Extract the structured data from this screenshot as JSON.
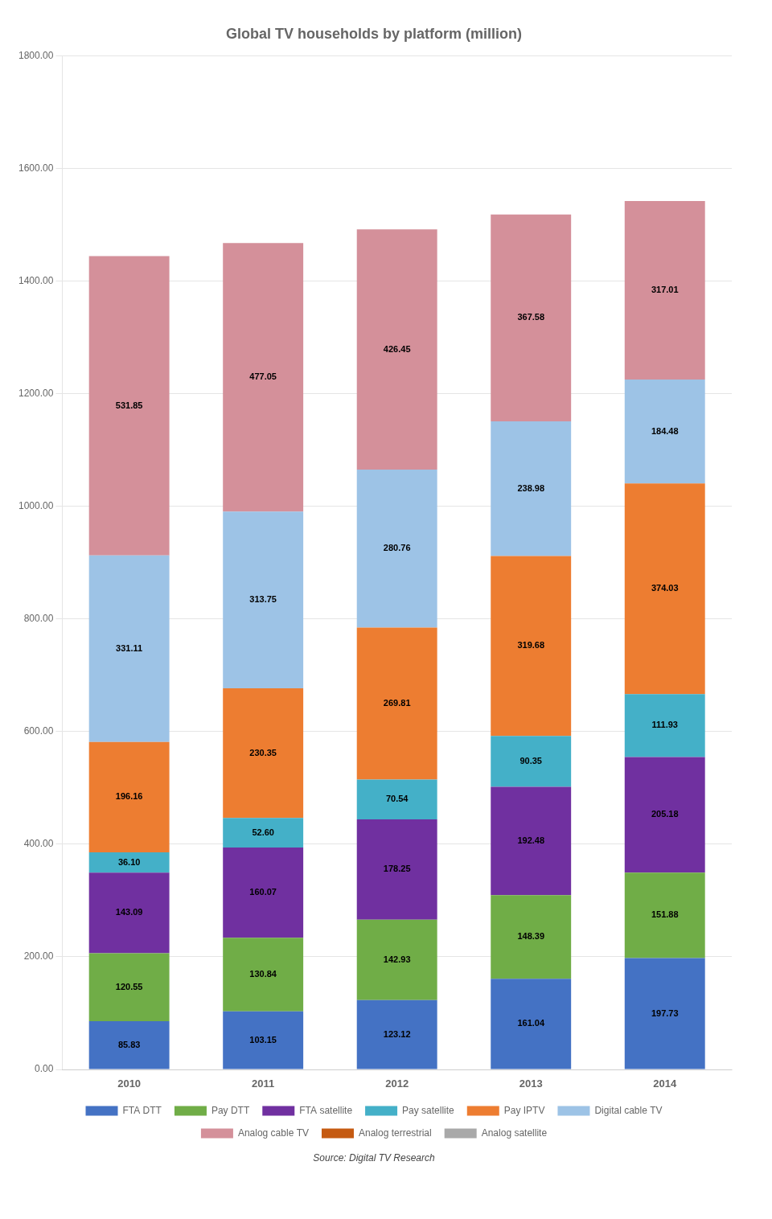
{
  "chart_data": {
    "type": "bar",
    "title": "Global TV households by platform (million)",
    "source": "Source: Digital TV Research",
    "categories": [
      "2010",
      "2011",
      "2012",
      "2013",
      "2014"
    ],
    "stacked": true,
    "data_labels": true,
    "grid": true,
    "legend": "bottom",
    "ylim": [
      0,
      1800
    ],
    "yticks": [
      {
        "value": 0,
        "label": "0.00"
      },
      {
        "value": 200,
        "label": "200.00"
      },
      {
        "value": 400,
        "label": "400.00"
      },
      {
        "value": 600,
        "label": "600.00"
      },
      {
        "value": 800,
        "label": "800.00"
      },
      {
        "value": 1000,
        "label": "1000.00"
      },
      {
        "value": 1200,
        "label": "1200.00"
      },
      {
        "value": 1400,
        "label": "1400.00"
      },
      {
        "value": 1600,
        "label": "1600.00"
      },
      {
        "value": 1800,
        "label": "1800.00"
      }
    ],
    "series": [
      {
        "name": "FTA DTT",
        "color": "#4472C4",
        "values": [
          85.83,
          103.15,
          123.12,
          161.04,
          197.73
        ],
        "value_labels": [
          "85.83",
          "103.15",
          "123.12",
          "161.04",
          "197.73"
        ]
      },
      {
        "name": "Pay DTT",
        "color": "#70AD47",
        "values": [
          120.55,
          130.84,
          142.93,
          148.39,
          151.88
        ],
        "value_labels": [
          "120.55",
          "130.84",
          "142.93",
          "148.39",
          "151.88"
        ]
      },
      {
        "name": "FTA satellite",
        "color": "#7030A0",
        "values": [
          143.09,
          160.07,
          178.25,
          192.48,
          205.18
        ],
        "value_labels": [
          "143.09",
          "160.07",
          "178.25",
          "192.48",
          "205.18"
        ]
      },
      {
        "name": "Pay satellite",
        "color": "#44B0C8",
        "values": [
          36.1,
          52.6,
          70.54,
          90.35,
          111.93
        ],
        "value_labels": [
          "36.10",
          "52.60",
          "70.54",
          "90.35",
          "111.93"
        ]
      },
      {
        "name": "Pay IPTV",
        "color": "#ED7D31",
        "values": [
          196.16,
          230.35,
          269.81,
          319.68,
          374.03
        ],
        "value_labels": [
          "196.16",
          "230.35",
          "269.81",
          "319.68",
          "374.03"
        ]
      },
      {
        "name": "Digital cable TV",
        "color": "#9DC3E6",
        "values": [
          331.11,
          313.75,
          280.76,
          238.98,
          184.48
        ],
        "value_labels": [
          "331.11",
          "313.75",
          "280.76",
          "238.98",
          "184.48"
        ]
      },
      {
        "name": "Analog cable TV",
        "color": "#D4909A",
        "values": [
          531.85,
          477.05,
          426.45,
          367.58,
          317.01
        ],
        "value_labels": [
          "531.85",
          "477.05",
          "426.45",
          "367.58",
          "317.01"
        ]
      },
      {
        "name": "Analog terrestrial",
        "color": "#C55A11",
        "values": [
          null,
          null,
          null,
          null,
          null
        ]
      },
      {
        "name": "Analog satellite",
        "color": "#A9A9A9",
        "values": [
          null,
          null,
          null,
          null,
          null
        ]
      }
    ]
  }
}
